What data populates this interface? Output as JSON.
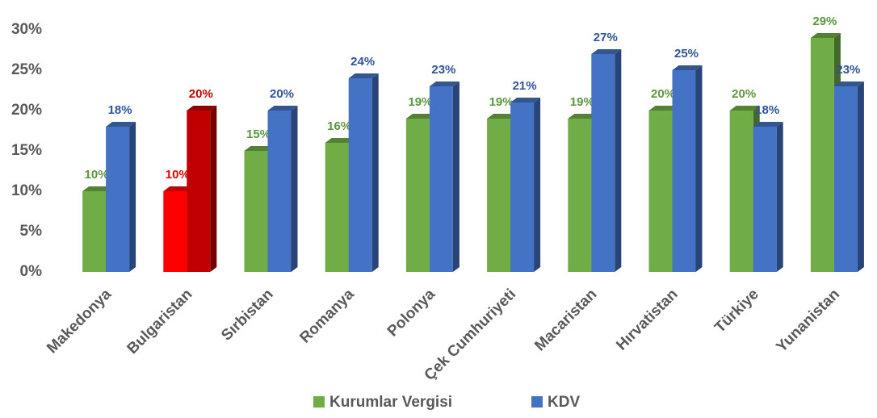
{
  "chart_data": {
    "type": "bar3d",
    "categories": [
      "Makedonya",
      "Bulgaristan",
      "Sırbistan",
      "Romanya",
      "Polonya",
      "Çek Cumhuriyeti",
      "Macaristan",
      "Hırvatistan",
      "Türkiye",
      "Yunanistan"
    ],
    "series": [
      {
        "name": "Kurumlar Vergisi",
        "color": "#70ad47",
        "values": [
          10,
          10,
          15,
          16,
          19,
          19,
          19,
          20,
          20,
          29
        ],
        "value_labels": [
          "10%",
          "10%",
          "15%",
          "16%",
          "19%",
          "19%",
          "19%",
          "20%",
          "20%",
          "29%"
        ],
        "point_colors": [
          "#70ad47",
          "#ff0000",
          "#70ad47",
          "#70ad47",
          "#70ad47",
          "#70ad47",
          "#70ad47",
          "#70ad47",
          "#70ad47",
          "#70ad47"
        ],
        "label_colors": [
          "#5e9640",
          "#e00000",
          "#5e9640",
          "#5e9640",
          "#5e9640",
          "#5e9640",
          "#5e9640",
          "#5e9640",
          "#5e9640",
          "#5e9640"
        ]
      },
      {
        "name": "KDV",
        "color": "#4472c4",
        "values": [
          18,
          20,
          20,
          24,
          23,
          21,
          27,
          25,
          18,
          23
        ],
        "value_labels": [
          "18%",
          "20%",
          "20%",
          "24%",
          "23%",
          "21%",
          "27%",
          "25%",
          "18%",
          "23%"
        ],
        "point_colors": [
          "#4472c4",
          "#c00000",
          "#4472c4",
          "#4472c4",
          "#4472c4",
          "#4472c4",
          "#4472c4",
          "#4472c4",
          "#4472c4",
          "#4472c4"
        ],
        "label_colors": [
          "#2f5597",
          "#c00000",
          "#2f5597",
          "#2f5597",
          "#2f5597",
          "#2f5597",
          "#2f5597",
          "#2f5597",
          "#2f5597",
          "#2f5597"
        ]
      }
    ],
    "ylim": [
      0,
      30
    ],
    "yticks": [
      {
        "value": 0,
        "label": "0%"
      },
      {
        "value": 5,
        "label": "5%"
      },
      {
        "value": 10,
        "label": "10%"
      },
      {
        "value": 15,
        "label": "15%"
      },
      {
        "value": 20,
        "label": "20%"
      },
      {
        "value": 25,
        "label": "25%"
      },
      {
        "value": 30,
        "label": "30%"
      }
    ],
    "legend": "bottom"
  }
}
